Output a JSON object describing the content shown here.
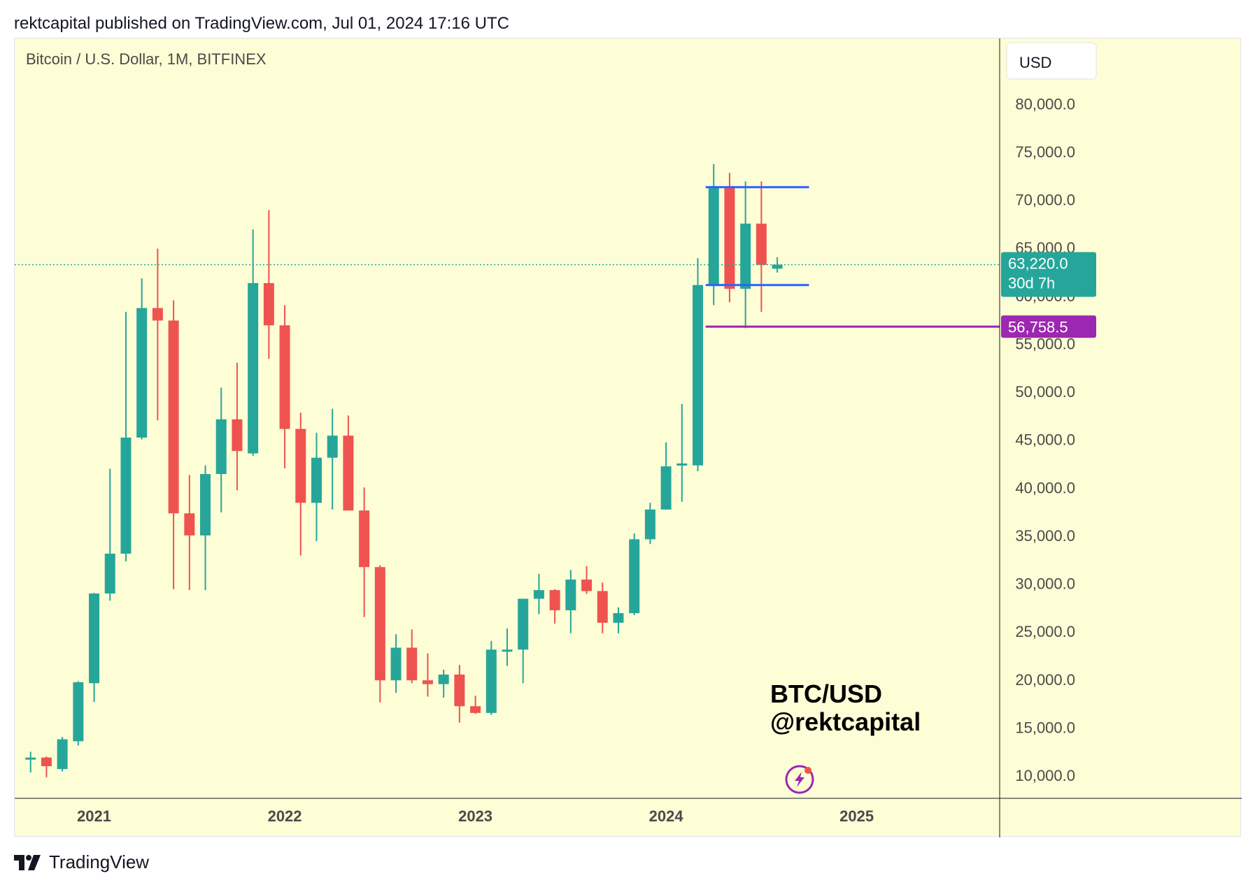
{
  "header": {
    "published_text": "rektcapital published on TradingView.com, Jul 01, 2024 17:16 UTC"
  },
  "footer": {
    "brand": "TradingView"
  },
  "watermark": {
    "line1": "BTC/USD",
    "line2": "@rektcapital"
  },
  "colors": {
    "up": "#26a69a",
    "down": "#ef5350",
    "background": "#fdfdd6",
    "range": "#2962ff",
    "support": "#9c27b0",
    "price_label": "#26a69a"
  },
  "chart_data": {
    "type": "candlestick",
    "title": "Bitcoin / U.S. Dollar, 1M, BITFINEX",
    "currency_button": "USD",
    "y_tick_labels": [
      "10,000.0",
      "15,000.0",
      "20,000.0",
      "25,000.0",
      "30,000.0",
      "35,000.0",
      "40,000.0",
      "45,000.0",
      "50,000.0",
      "55,000.0",
      "60,000.0",
      "65,000.0",
      "70,000.0",
      "75,000.0",
      "80,000.0"
    ],
    "y_ticks": [
      10000,
      15000,
      20000,
      25000,
      30000,
      35000,
      40000,
      45000,
      50000,
      55000,
      60000,
      65000,
      70000,
      75000,
      80000
    ],
    "ylim": [
      7600,
      86800
    ],
    "x_tick_labels": [
      "2021",
      "2022",
      "2023",
      "2024",
      "2025"
    ],
    "x_ticks": [
      "2021-01",
      "2022-01",
      "2023-01",
      "2024-01",
      "2025-01"
    ],
    "xlim": [
      "2020-08",
      "2025-10"
    ],
    "grid": false,
    "candles": [
      {
        "t": "2020-09",
        "o": 11650,
        "h": 12450,
        "l": 10300,
        "c": 11850
      },
      {
        "t": "2020-10",
        "o": 11850,
        "h": 11950,
        "l": 9800,
        "c": 10950
      },
      {
        "t": "2020-11",
        "o": 10650,
        "h": 14000,
        "l": 10400,
        "c": 13750
      },
      {
        "t": "2020-12",
        "o": 13550,
        "h": 19800,
        "l": 13100,
        "c": 19700
      },
      {
        "t": "2021-01",
        "o": 19600,
        "h": 29000,
        "l": 17650,
        "c": 28950
      },
      {
        "t": "2021-02",
        "o": 28950,
        "h": 41950,
        "l": 28200,
        "c": 33100
      },
      {
        "t": "2021-03",
        "o": 33100,
        "h": 58300,
        "l": 32300,
        "c": 45200
      },
      {
        "t": "2021-04",
        "o": 45200,
        "h": 61800,
        "l": 45000,
        "c": 58700
      },
      {
        "t": "2021-05",
        "o": 58700,
        "h": 64900,
        "l": 47000,
        "c": 57400
      },
      {
        "t": "2021-06",
        "o": 57400,
        "h": 59500,
        "l": 29400,
        "c": 37300
      },
      {
        "t": "2021-07",
        "o": 37300,
        "h": 41300,
        "l": 29300,
        "c": 35000
      },
      {
        "t": "2021-08",
        "o": 35000,
        "h": 42300,
        "l": 29300,
        "c": 41400
      },
      {
        "t": "2021-09",
        "o": 41400,
        "h": 50400,
        "l": 37400,
        "c": 47100
      },
      {
        "t": "2021-10",
        "o": 47100,
        "h": 53000,
        "l": 39700,
        "c": 43800
      },
      {
        "t": "2021-11",
        "o": 43550,
        "h": 66900,
        "l": 43300,
        "c": 61300
      },
      {
        "t": "2021-12",
        "o": 61300,
        "h": 68900,
        "l": 53400,
        "c": 56900
      },
      {
        "t": "2022-01",
        "o": 56900,
        "h": 59000,
        "l": 42000,
        "c": 46100
      },
      {
        "t": "2022-02",
        "o": 46100,
        "h": 47800,
        "l": 32900,
        "c": 38400
      },
      {
        "t": "2022-03",
        "o": 38400,
        "h": 45700,
        "l": 34400,
        "c": 43100
      },
      {
        "t": "2022-04",
        "o": 43100,
        "h": 48200,
        "l": 37700,
        "c": 45400
      },
      {
        "t": "2022-05",
        "o": 45400,
        "h": 47500,
        "l": 37600,
        "c": 37600
      },
      {
        "t": "2022-06",
        "o": 37600,
        "h": 40000,
        "l": 26500,
        "c": 31700
      },
      {
        "t": "2022-07",
        "o": 31700,
        "h": 31900,
        "l": 17600,
        "c": 19900
      },
      {
        "t": "2022-08",
        "o": 19900,
        "h": 24700,
        "l": 18600,
        "c": 23300
      },
      {
        "t": "2022-09",
        "o": 23300,
        "h": 25200,
        "l": 19600,
        "c": 19900
      },
      {
        "t": "2022-10",
        "o": 19900,
        "h": 22700,
        "l": 18200,
        "c": 19500
      },
      {
        "t": "2022-11",
        "o": 19500,
        "h": 21000,
        "l": 18100,
        "c": 20500
      },
      {
        "t": "2022-12",
        "o": 20500,
        "h": 21500,
        "l": 15500,
        "c": 17200
      },
      {
        "t": "2023-01",
        "o": 17200,
        "h": 18300,
        "l": 16400,
        "c": 16500
      },
      {
        "t": "2023-02",
        "o": 16500,
        "h": 24000,
        "l": 16300,
        "c": 23100
      },
      {
        "t": "2023-03",
        "o": 23100,
        "h": 25300,
        "l": 21400,
        "c": 23100
      },
      {
        "t": "2023-04",
        "o": 23100,
        "h": 28400,
        "l": 19600,
        "c": 28400
      },
      {
        "t": "2023-05",
        "o": 28400,
        "h": 31000,
        "l": 26800,
        "c": 29300
      },
      {
        "t": "2023-06",
        "o": 29300,
        "h": 29400,
        "l": 25800,
        "c": 27200
      },
      {
        "t": "2023-07",
        "o": 27200,
        "h": 31400,
        "l": 24800,
        "c": 30400
      },
      {
        "t": "2023-08",
        "o": 30400,
        "h": 31800,
        "l": 28900,
        "c": 29200
      },
      {
        "t": "2023-09",
        "o": 29200,
        "h": 30100,
        "l": 24800,
        "c": 25900
      },
      {
        "t": "2023-10",
        "o": 25900,
        "h": 27500,
        "l": 24800,
        "c": 26900
      },
      {
        "t": "2023-11",
        "o": 26900,
        "h": 35200,
        "l": 26700,
        "c": 34600
      },
      {
        "t": "2023-12",
        "o": 34600,
        "h": 38400,
        "l": 34100,
        "c": 37700
      },
      {
        "t": "2024-01",
        "o": 37700,
        "h": 44700,
        "l": 37700,
        "c": 42200
      },
      {
        "t": "2024-02",
        "o": 42300,
        "h": 48700,
        "l": 38500,
        "c": 42500
      },
      {
        "t": "2024-03",
        "o": 42300,
        "h": 63900,
        "l": 41700,
        "c": 61100
      },
      {
        "t": "2024-04",
        "o": 61100,
        "h": 73700,
        "l": 59000,
        "c": 71400
      },
      {
        "t": "2024-05",
        "o": 71400,
        "h": 72800,
        "l": 59300,
        "c": 60700
      },
      {
        "t": "2024-06",
        "o": 60700,
        "h": 71900,
        "l": 56600,
        "c": 67500
      },
      {
        "t": "2024-07",
        "o": 67500,
        "h": 71900,
        "l": 58300,
        "c": 63200
      },
      {
        "t": "2024-08",
        "o": 62800,
        "h": 64000,
        "l": 62400,
        "c": 63220
      }
    ],
    "annotations": {
      "range_high": 71300,
      "range_low": 61100,
      "range_start": "2024-04",
      "range_end": "2024-10",
      "support_level": 56758.5,
      "support_start": "2024-04",
      "support_label": "56,758.5",
      "last_price": 63220,
      "last_price_label": "63,220.0",
      "countdown_label": "30d 7h"
    }
  }
}
